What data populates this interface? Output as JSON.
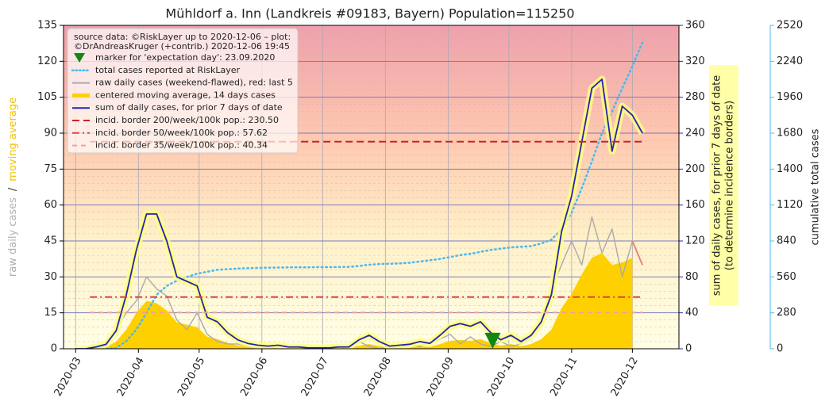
{
  "chart_data": {
    "type": "line",
    "title": "Mühldorf a. Inn (Landkreis #09183, Bayern) Population=115250",
    "legend_title": [
      "source data: ©RiskLayer up to 2020-12-06 – plot:",
      "©DrAndreasKruger (+contrib.) 2020-12-06 19:45"
    ],
    "x": [
      "2020-03-01",
      "2020-03-06",
      "2020-03-11",
      "2020-03-16",
      "2020-03-21",
      "2020-03-26",
      "2020-03-31",
      "2020-04-05",
      "2020-04-10",
      "2020-04-15",
      "2020-04-20",
      "2020-04-25",
      "2020-04-30",
      "2020-05-05",
      "2020-05-10",
      "2020-05-15",
      "2020-05-20",
      "2020-05-25",
      "2020-05-30",
      "2020-06-04",
      "2020-06-09",
      "2020-06-14",
      "2020-06-19",
      "2020-06-24",
      "2020-06-29",
      "2020-07-04",
      "2020-07-09",
      "2020-07-14",
      "2020-07-19",
      "2020-07-24",
      "2020-07-29",
      "2020-08-03",
      "2020-08-08",
      "2020-08-13",
      "2020-08-18",
      "2020-08-23",
      "2020-08-28",
      "2020-09-02",
      "2020-09-07",
      "2020-09-12",
      "2020-09-17",
      "2020-09-22",
      "2020-09-27",
      "2020-10-02",
      "2020-10-07",
      "2020-10-12",
      "2020-10-17",
      "2020-10-22",
      "2020-10-27",
      "2020-11-01",
      "2020-11-06",
      "2020-11-11",
      "2020-11-16",
      "2020-11-21",
      "2020-11-26",
      "2020-12-01",
      "2020-12-06"
    ],
    "xlim": [
      "2020-02-24",
      "2020-12-24"
    ],
    "xticks": [
      "2020-03",
      "2020-04",
      "2020-05",
      "2020-06",
      "2020-07",
      "2020-08",
      "2020-09",
      "2020-10",
      "2020-11",
      "2020-12"
    ],
    "ylim": [
      0,
      135
    ],
    "yticks": [
      0,
      15,
      30,
      45,
      60,
      75,
      90,
      105,
      120,
      135
    ],
    "y2lim": [
      0,
      360
    ],
    "y2ticks": [
      0,
      40,
      80,
      120,
      160,
      200,
      240,
      280,
      320,
      360
    ],
    "y3lim": [
      0,
      2520
    ],
    "y3ticks": [
      0,
      280,
      560,
      840,
      1120,
      1400,
      1680,
      1960,
      2240,
      2520
    ],
    "ylabel": [
      {
        "text": "raw daily cases",
        "color": "#b0b0b0"
      },
      {
        "text": "/",
        "color": "#333333"
      },
      {
        "text": "moving average",
        "color": "#f2c200"
      }
    ],
    "y2label": [
      "sum of daily cases, for prior 7 days of date",
      "(to determine incidence borders)"
    ],
    "y3label": "cumulative total cases",
    "grid": true,
    "marker": {
      "name": "marker for 'expectation day': 23.09.2020",
      "x": "2020-09-23",
      "y": 3,
      "color": "#118811"
    },
    "series": [
      {
        "name": "total cases reported at RiskLayer",
        "axis": "y3",
        "style": "dotted",
        "color": "#4cb8ee",
        "values": [
          0,
          0,
          1,
          2,
          5,
          60,
          150,
          280,
          420,
          490,
          530,
          560,
          585,
          600,
          615,
          620,
          625,
          628,
          630,
          632,
          633,
          634,
          635,
          635,
          636,
          636,
          637,
          638,
          645,
          655,
          660,
          662,
          665,
          670,
          680,
          690,
          700,
          715,
          730,
          740,
          755,
          770,
          780,
          790,
          795,
          800,
          820,
          850,
          930,
          1060,
          1250,
          1460,
          1680,
          1850,
          2030,
          2200,
          2390
        ]
      },
      {
        "name": "raw daily cases (weekend-flawed), red: last 5",
        "axis": "y",
        "style": "line",
        "color": "#aaaaaa",
        "last_color": "#f08080",
        "values": [
          0,
          0,
          1,
          1,
          8,
          15,
          20,
          30,
          25,
          22,
          12,
          8,
          15,
          6,
          3,
          2,
          2,
          1,
          0,
          1,
          0,
          0,
          1,
          0,
          0,
          0,
          0,
          1,
          3,
          1,
          0,
          1,
          0,
          2,
          1,
          3,
          4,
          6,
          2,
          5,
          2,
          1,
          3,
          1,
          2,
          5,
          10,
          25,
          35,
          45,
          35,
          55,
          40,
          50,
          30,
          45,
          35
        ]
      },
      {
        "name": "centered moving average, 14 days cases",
        "axis": "y",
        "style": "area",
        "color": "#ffd000",
        "values": [
          0,
          0,
          0.3,
          0.7,
          3,
          8,
          15,
          20,
          19,
          16,
          11,
          10,
          9,
          5,
          4,
          2.5,
          1.4,
          0.8,
          0.5,
          0.4,
          0.5,
          0.3,
          0.3,
          0.1,
          0.1,
          0.1,
          0.3,
          0.3,
          1.3,
          2,
          1.1,
          0.4,
          0.5,
          0.7,
          1.1,
          0.8,
          2,
          3.3,
          3.7,
          3.3,
          4,
          2.4,
          1.3,
          2,
          1.1,
          2,
          4,
          8,
          17,
          23,
          31,
          38,
          40,
          35,
          36,
          38,
          null
        ]
      },
      {
        "name": "sum of daily cases, for prior 7 days of date",
        "axis": "y2",
        "style": "line",
        "color": "#2424b0",
        "values": [
          0,
          0,
          2,
          5,
          20,
          60,
          110,
          150,
          150,
          120,
          80,
          75,
          70,
          35,
          30,
          18,
          10,
          6,
          4,
          3,
          4,
          2,
          2,
          1,
          1,
          1,
          2,
          2,
          10,
          15,
          8,
          3,
          4,
          5,
          8,
          6,
          15,
          25,
          28,
          25,
          30,
          18,
          10,
          15,
          8,
          15,
          30,
          60,
          130,
          170,
          230,
          290,
          300,
          220,
          270,
          260,
          240
        ]
      }
    ],
    "borders": [
      {
        "name": "incid. border 200/week/100k pop.: 230.50",
        "value": 230.5,
        "axis": "y2",
        "color": "#cc2222",
        "dash": "9,5"
      },
      {
        "name": "incid. border 50/week/100k pop.: 57.62",
        "value": 57.62,
        "axis": "y2",
        "color": "#d94444",
        "dash": "9,4,2,4"
      },
      {
        "name": "incid. border 35/week/100k pop.: 40.34",
        "value": 40.34,
        "axis": "y2",
        "color": "#f0a0a0",
        "dash": "6,5"
      }
    ],
    "border_x": [
      "2020-03-08",
      "2020-12-06"
    ]
  }
}
